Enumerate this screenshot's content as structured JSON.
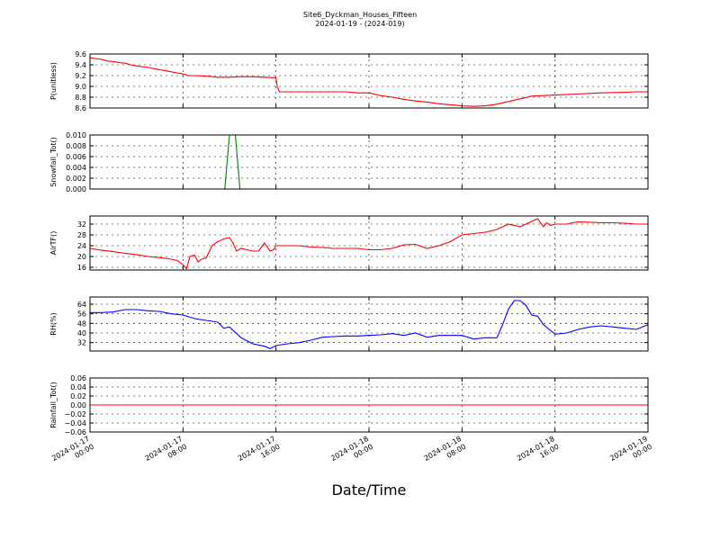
{
  "title_line1": "Site6_Dyckman_Houses_Fifteen",
  "title_line2": "2024-01-19 - (2024-019)",
  "xlabel": "Date/Time",
  "x_tick_labels": [
    [
      "2024-01-17",
      "00:00"
    ],
    [
      "2024-01-17",
      "08:00"
    ],
    [
      "2024-01-17",
      "16:00"
    ],
    [
      "2024-01-18",
      "00:00"
    ],
    [
      "2024-01-18",
      "08:00"
    ],
    [
      "2024-01-18",
      "16:00"
    ],
    [
      "2024-01-19",
      "00:00"
    ]
  ],
  "chart_data": [
    {
      "type": "line",
      "ylabel": "P(unitless)",
      "ylim": [
        8.6,
        9.6
      ],
      "yticks": [
        "9.6",
        "9.4",
        "9.2",
        "9.0",
        "8.8",
        "8.6"
      ],
      "xlim": [
        "2024-01-17 00:00",
        "2024-01-19 00:00"
      ],
      "grid": true,
      "series": [
        {
          "color": "#ff0000",
          "x": [
            0,
            1,
            1.5,
            2,
            2.5,
            3,
            3.5,
            4,
            5,
            6,
            7,
            7.5,
            8,
            8.5,
            9,
            10,
            11,
            12,
            13,
            14,
            15,
            16,
            16.1,
            16.3,
            17,
            18,
            19,
            20,
            21,
            22,
            23,
            24,
            25,
            26,
            27,
            28,
            29,
            30,
            31,
            32,
            33,
            34,
            35,
            36,
            37,
            38,
            44,
            46,
            47,
            48
          ],
          "values": [
            9.53,
            9.5,
            9.47,
            9.46,
            9.44,
            9.43,
            9.4,
            9.38,
            9.35,
            9.31,
            9.27,
            9.25,
            9.23,
            9.2,
            9.2,
            9.19,
            9.17,
            9.17,
            9.18,
            9.18,
            9.17,
            9.16,
            9.0,
            8.9,
            8.9,
            8.9,
            8.9,
            8.9,
            8.9,
            8.9,
            8.88,
            8.88,
            8.83,
            8.8,
            8.76,
            8.73,
            8.71,
            8.68,
            8.66,
            8.64,
            8.63,
            8.64,
            8.67,
            8.72,
            8.77,
            8.82,
            8.88,
            8.89,
            8.9,
            8.9
          ]
        }
      ]
    },
    {
      "type": "line",
      "ylabel": "Snowfall_Tot()",
      "ylim": [
        0,
        0.01
      ],
      "yticks": [
        "0.010",
        "0.008",
        "0.006",
        "0.004",
        "0.002",
        "0.000"
      ],
      "xlim": [
        "2024-01-17 00:00",
        "2024-01-19 00:00"
      ],
      "grid": true,
      "series": [
        {
          "color": "#008000",
          "x": [
            0,
            11.6,
            12.0,
            12.5,
            12.9,
            48
          ],
          "values": [
            0,
            0,
            0.01,
            0.01,
            0,
            0
          ]
        }
      ]
    },
    {
      "type": "line",
      "ylabel": "AirTF()",
      "ylim": [
        15,
        35
      ],
      "yticks": [
        "32",
        "28",
        "24",
        "20",
        "16"
      ],
      "xlim": [
        "2024-01-17 00:00",
        "2024-01-19 00:00"
      ],
      "grid": true,
      "series": [
        {
          "color": "#ff0000",
          "x": [
            0,
            1,
            2,
            3,
            4,
            5,
            6,
            7,
            7.5,
            8,
            8.3,
            8.6,
            9,
            9.3,
            9.6,
            10,
            10.5,
            11,
            11.5,
            12,
            12.3,
            12.6,
            13,
            13.5,
            14,
            14.5,
            15,
            15.5,
            15.8,
            16,
            16.3,
            16.5,
            17,
            18,
            19,
            20,
            21,
            22,
            23,
            24,
            25,
            26,
            27,
            28,
            29,
            30,
            31,
            32,
            33,
            34,
            34.5,
            35,
            36,
            37,
            38,
            38.5,
            39,
            39.3,
            39.6,
            40,
            40.5,
            41,
            41.5,
            42,
            43,
            44,
            45,
            46,
            47,
            48
          ],
          "values": [
            23,
            22.3,
            21.8,
            21.2,
            20.7,
            20,
            19.6,
            19,
            18.5,
            17,
            15.5,
            20,
            20.5,
            18,
            19,
            19.5,
            24,
            25.5,
            26.5,
            27,
            25,
            22,
            23,
            22.5,
            22,
            22,
            25,
            22,
            22.5,
            24,
            24,
            24,
            24,
            24,
            23.5,
            23.3,
            23,
            23,
            23,
            22.5,
            22.5,
            23,
            24.3,
            24.5,
            23,
            24,
            25.5,
            28,
            28.5,
            29,
            29.5,
            30,
            32,
            31,
            33,
            34,
            31,
            32.5,
            31.5,
            32,
            32,
            32,
            32.5,
            32.8,
            32.7,
            32.5,
            32.5,
            32.3,
            32,
            32
          ]
        }
      ]
    },
    {
      "type": "line",
      "ylabel": "RH(%)",
      "ylim": [
        25,
        70
      ],
      "yticks": [
        "64",
        "56",
        "48",
        "40",
        "32"
      ],
      "xlim": [
        "2024-01-17 00:00",
        "2024-01-19 00:00"
      ],
      "grid": true,
      "series": [
        {
          "color": "#0000ff",
          "x": [
            0,
            1,
            2,
            3,
            4,
            5,
            6,
            7,
            8,
            9,
            10,
            11,
            11.5,
            12,
            13,
            14,
            15,
            15.5,
            16,
            17,
            18,
            19,
            20,
            21,
            22,
            23,
            24,
            25,
            26,
            27,
            28,
            29,
            30,
            31,
            32,
            33,
            34,
            35,
            35.5,
            36,
            36.5,
            37,
            37.5,
            38,
            38.5,
            39,
            39.5,
            40,
            41,
            42,
            43,
            44,
            45,
            46,
            47,
            48
          ],
          "values": [
            57,
            57,
            57.5,
            59.5,
            59.5,
            58.5,
            58,
            56,
            55,
            52,
            50.5,
            49,
            44,
            45,
            36,
            31,
            29,
            27,
            29.5,
            31,
            32,
            34,
            36.5,
            37,
            37.5,
            37.5,
            38,
            38.5,
            39.5,
            38,
            40,
            36.5,
            38,
            38,
            38,
            35,
            36,
            36,
            47,
            60,
            67,
            67,
            63,
            55,
            54,
            47,
            43,
            39,
            40,
            43,
            45,
            46,
            45,
            44,
            43,
            47
          ]
        }
      ]
    },
    {
      "type": "line",
      "ylabel": "Rainfall_Tot()",
      "ylim": [
        -0.06,
        0.06
      ],
      "yticks": [
        "0.06",
        "0.04",
        "0.02",
        "0.00",
        "−0.02",
        "−0.04",
        "−0.06"
      ],
      "xlim": [
        "2024-01-17 00:00",
        "2024-01-19 00:00"
      ],
      "grid": true,
      "series": [
        {
          "color": "#ff0000",
          "x": [
            0,
            48
          ],
          "values": [
            0,
            0
          ]
        }
      ]
    }
  ]
}
